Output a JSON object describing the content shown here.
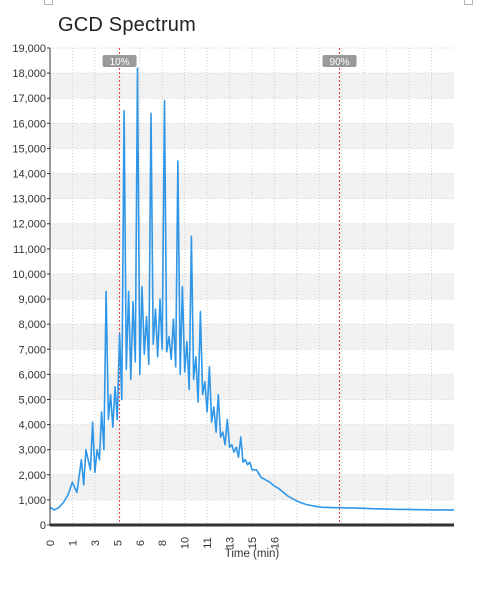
{
  "header": {
    "title": "GCD Spectrum"
  },
  "colors": {
    "line": "#2f96e8",
    "grid": "#cfcfcf",
    "band": "#f2f2f2",
    "marker_line": "#e33a3a",
    "marker_badge": "#9a9a9a",
    "axis": "#333333"
  },
  "chart_data": {
    "type": "line",
    "title": "GCD Spectrum",
    "xlabel": "Time (min)",
    "ylabel": "",
    "xlim": [
      0,
      18
    ],
    "ylim": [
      0,
      19000
    ],
    "y_ticks": [
      0,
      1000,
      2000,
      3000,
      4000,
      5000,
      6000,
      7000,
      8000,
      9000,
      10000,
      11000,
      12000,
      13000,
      14000,
      15000,
      16000,
      17000,
      18000,
      19000
    ],
    "y_tick_labels": [
      "0",
      "1,000",
      "2,000",
      "3,000",
      "4,000",
      "5,000",
      "6,000",
      "7,000",
      "8,000",
      "9,000",
      "10,000",
      "11,000",
      "12,000",
      "13,000",
      "14,000",
      "15,000",
      "16,000",
      "17,000",
      "18,000",
      "19,000"
    ],
    "x_ticks": [
      0,
      1,
      2,
      3,
      4,
      5,
      6,
      7,
      8,
      9,
      10,
      11,
      12,
      13,
      14,
      15,
      16,
      17
    ],
    "x_tick_labels": [
      "0",
      "1",
      "3",
      "5",
      "6",
      "8",
      "10",
      "11",
      "13",
      "15",
      "16"
    ],
    "x_tick_label_positions": [
      0,
      1,
      2,
      3,
      4,
      5,
      6,
      7,
      8,
      9,
      10
    ],
    "grid": true,
    "markers": [
      {
        "label": "10%",
        "x": 3.1
      },
      {
        "label": "90%",
        "x": 12.9
      }
    ],
    "series": [
      {
        "x": [
          0,
          0.2,
          0.4,
          0.6,
          0.8,
          1.0,
          1.2,
          1.4,
          1.5,
          1.6,
          1.8,
          1.9,
          2.0,
          2.1,
          2.2,
          2.3,
          2.4,
          2.5,
          2.6,
          2.7,
          2.8,
          2.9,
          3.0,
          3.1,
          3.2,
          3.3,
          3.4,
          3.5,
          3.6,
          3.7,
          3.8,
          3.9,
          4.0,
          4.1,
          4.2,
          4.3,
          4.4,
          4.5,
          4.6,
          4.7,
          4.8,
          4.9,
          5.0,
          5.1,
          5.2,
          5.3,
          5.4,
          5.5,
          5.6,
          5.7,
          5.8,
          5.9,
          6.0,
          6.1,
          6.2,
          6.3,
          6.4,
          6.5,
          6.6,
          6.7,
          6.8,
          6.9,
          7.0,
          7.1,
          7.2,
          7.3,
          7.4,
          7.5,
          7.6,
          7.7,
          7.8,
          7.9,
          8.0,
          8.1,
          8.2,
          8.3,
          8.4,
          8.5,
          8.6,
          8.7,
          8.8,
          8.9,
          9.0,
          9.2,
          9.4,
          9.6,
          9.8,
          10.0,
          10.2,
          10.4,
          10.6,
          10.8,
          11.0,
          11.2,
          11.4,
          11.6,
          11.8,
          12.0,
          12.2,
          12.4,
          12.6,
          12.8,
          13.0,
          13.2,
          13.5,
          13.8,
          14.1,
          14.4,
          14.8,
          15.2,
          15.6,
          16.0,
          16.5,
          17.0,
          17.5,
          18.0
        ],
        "values": [
          700,
          600,
          700,
          900,
          1200,
          1700,
          1300,
          2600,
          1600,
          3000,
          2200,
          4100,
          2100,
          3000,
          2600,
          4500,
          3000,
          9300,
          4200,
          5200,
          3900,
          5500,
          4200,
          7600,
          5000,
          16500,
          6200,
          9300,
          5800,
          8900,
          6500,
          18200,
          6000,
          9500,
          6800,
          8300,
          6400,
          16400,
          7200,
          8600,
          6700,
          9000,
          7000,
          16900,
          6900,
          7500,
          6600,
          8200,
          6300,
          14500,
          6000,
          9500,
          6100,
          7300,
          5400,
          11500,
          5800,
          6700,
          4900,
          8500,
          5200,
          5700,
          4500,
          6300,
          4100,
          4700,
          3700,
          5200,
          3500,
          3700,
          3200,
          4200,
          3100,
          3200,
          2900,
          3100,
          2700,
          3500,
          2500,
          2600,
          2400,
          2500,
          2200,
          2200,
          1900,
          1800,
          1700,
          1550,
          1450,
          1300,
          1150,
          1050,
          950,
          880,
          820,
          780,
          750,
          720,
          700,
          700,
          690,
          690,
          690,
          680,
          680,
          670,
          660,
          650,
          640,
          630,
          620,
          620,
          610,
          600,
          600,
          600
        ]
      }
    ]
  }
}
